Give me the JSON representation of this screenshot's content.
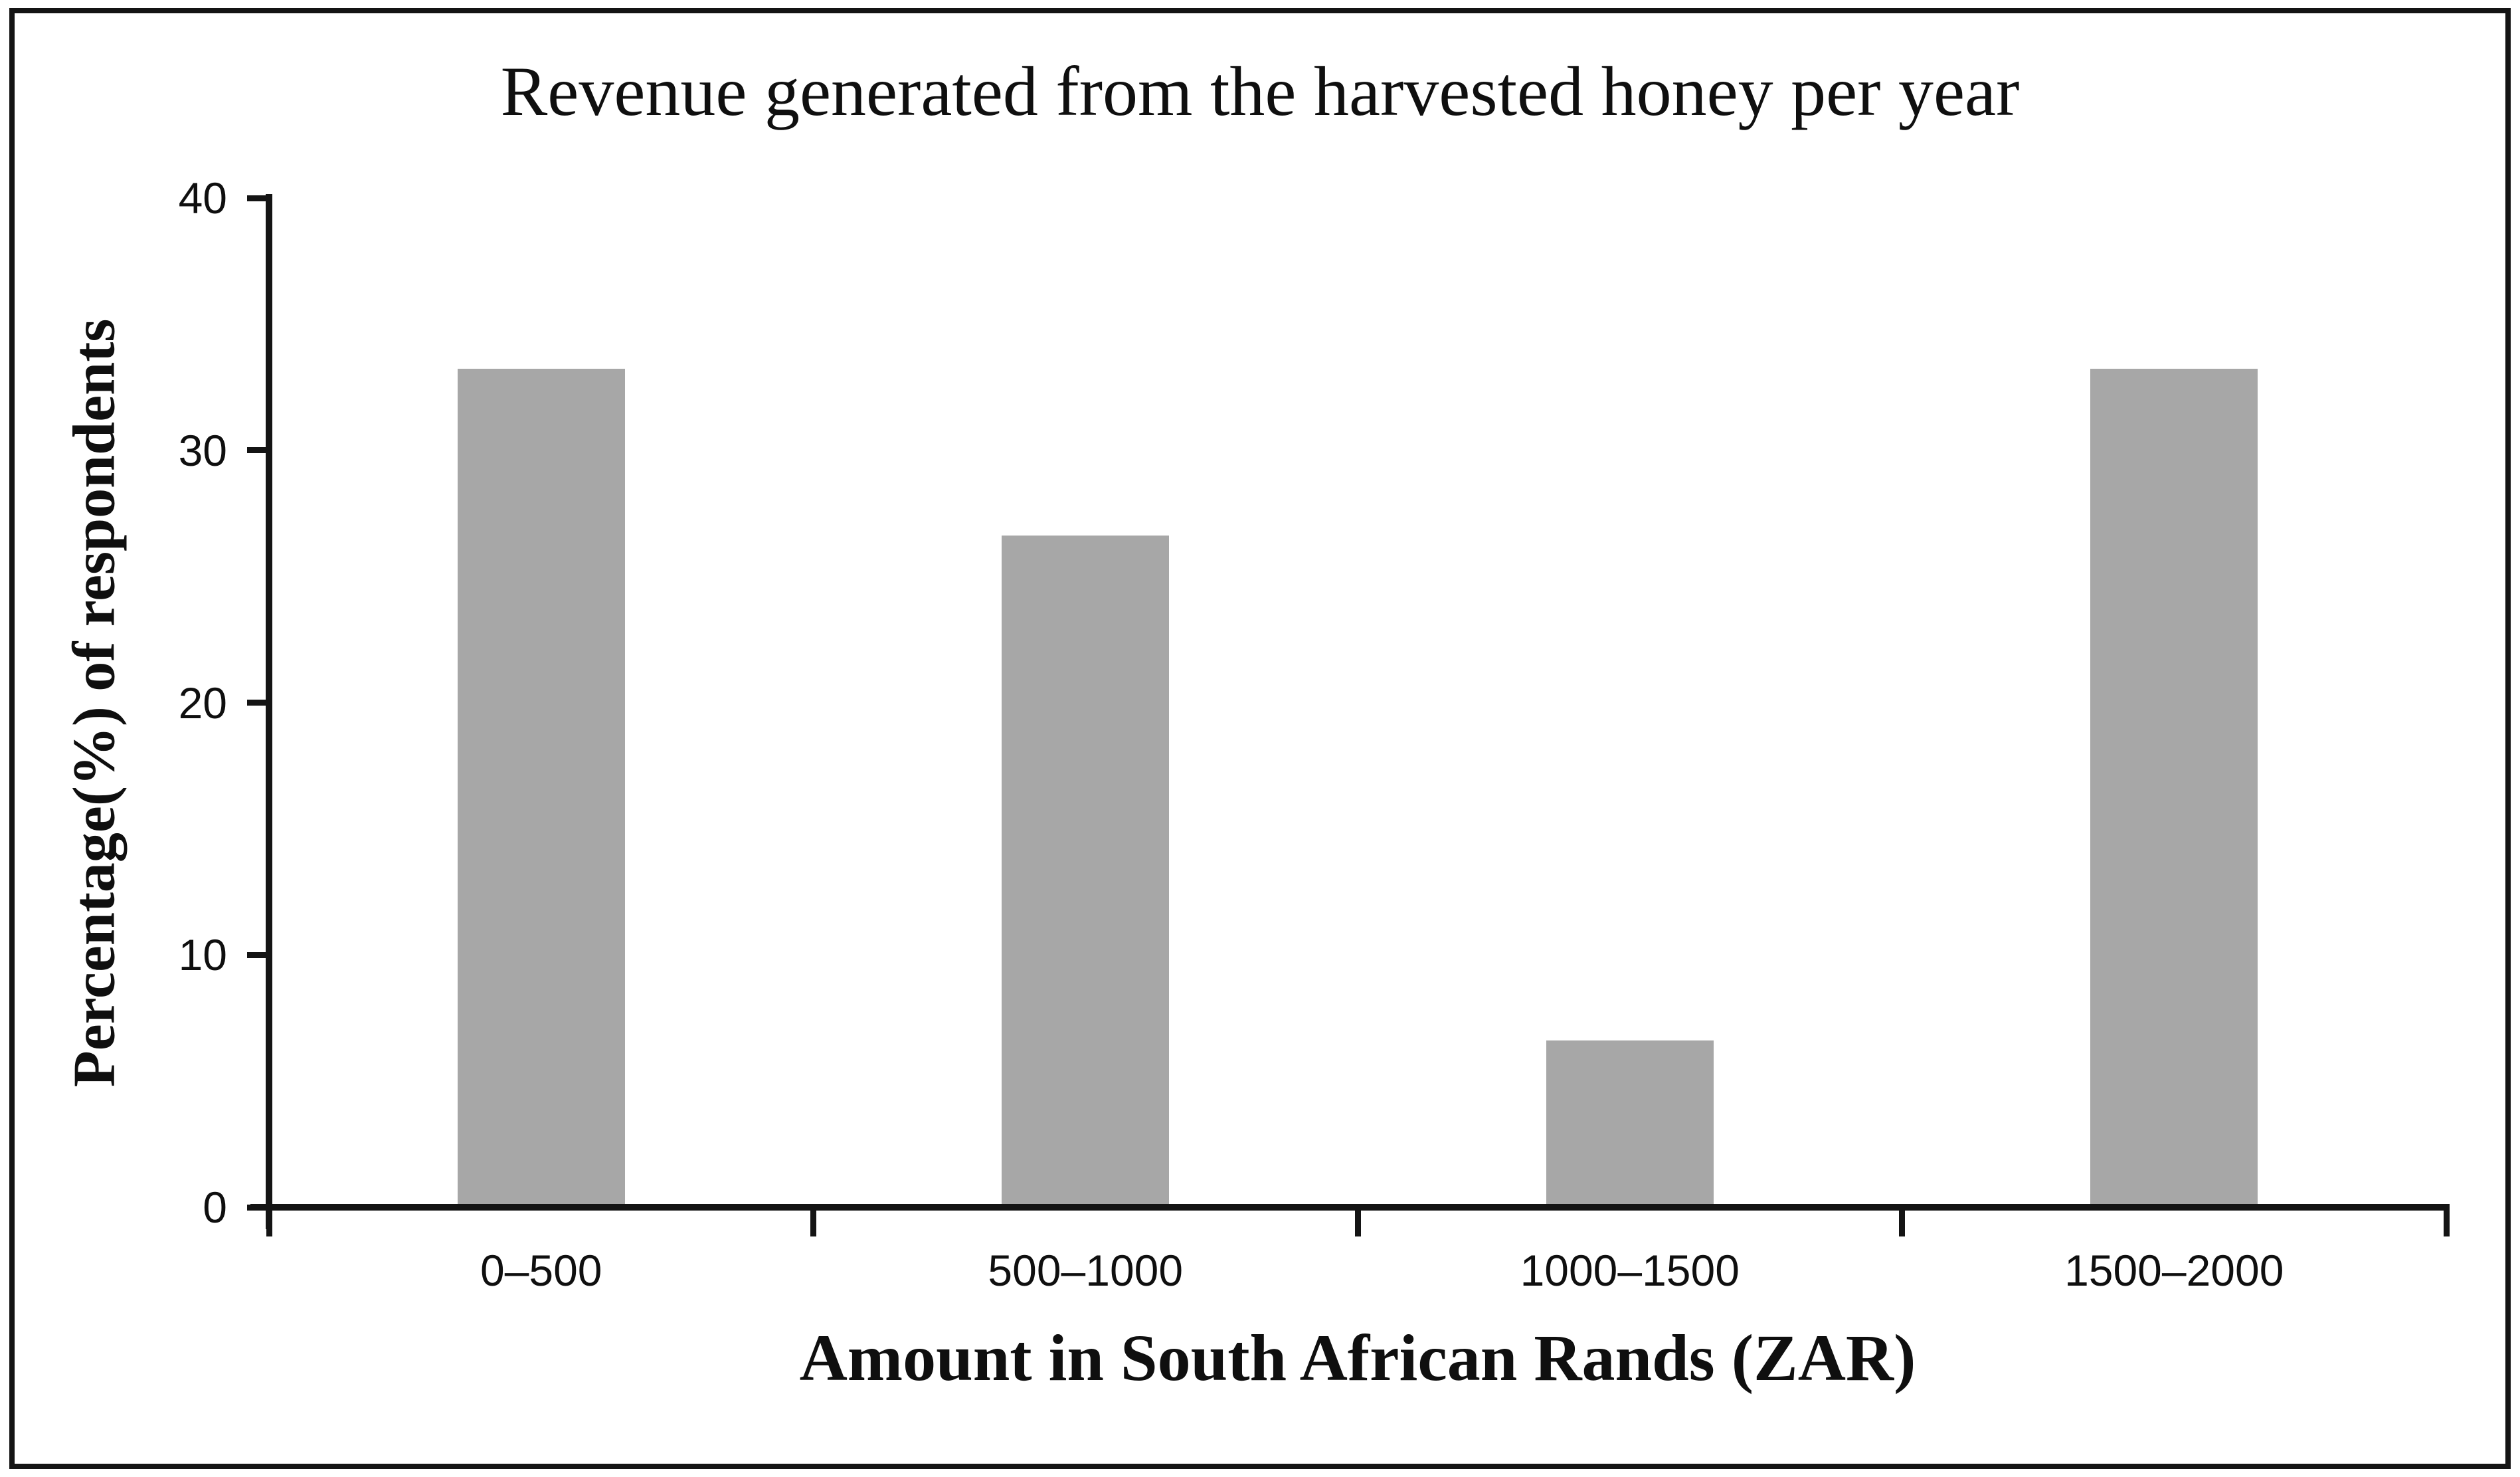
{
  "chart_data": {
    "type": "bar",
    "title": "Revenue generated from the harvested honey per year",
    "categories": [
      "0–500",
      "500–1000",
      "1000–1500",
      "1500–2000"
    ],
    "values": [
      33.3,
      26.7,
      6.7,
      33.3
    ],
    "xlabel": "Amount in South African Rands (ZAR)",
    "ylabel": "Percentage(%) of respondents",
    "ylim": [
      0,
      40
    ],
    "y_ticks": [
      0,
      10,
      20,
      30,
      40
    ],
    "bar_color": "#a7a7a7",
    "axis_color": "#141414",
    "frame_color": "#141414",
    "background_color": "#ffffff",
    "grid": false,
    "legend_position": "none"
  }
}
